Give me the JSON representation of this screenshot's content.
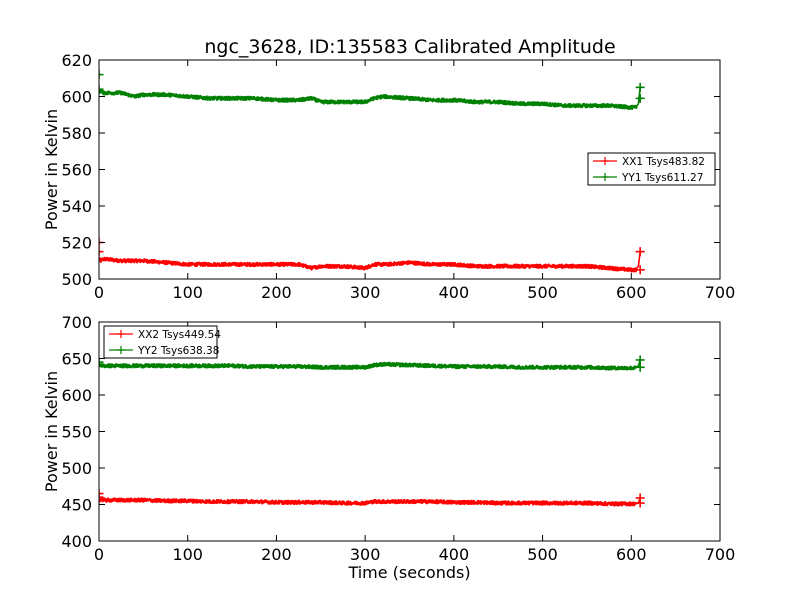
{
  "figure": {
    "title": "ngc_3628, ID:135583 Calibrated Amplitude"
  },
  "chart_data": [
    {
      "type": "line",
      "title": "ngc_3628, ID:135583 Calibrated Amplitude",
      "xlabel": "",
      "ylabel": "Power in Kelvin",
      "xlim": [
        0,
        700
      ],
      "ylim": [
        500,
        620
      ],
      "xticks": [
        0,
        100,
        200,
        300,
        400,
        500,
        600,
        700
      ],
      "yticks": [
        500,
        520,
        540,
        560,
        580,
        600,
        620
      ],
      "legend_position": "center-right",
      "series": [
        {
          "name": "XX1 Tsys483.82",
          "color": "#ff0000",
          "marker": "+",
          "x": [
            0,
            2,
            5,
            25,
            50,
            75,
            100,
            125,
            150,
            175,
            200,
            225,
            240,
            250,
            275,
            300,
            310,
            325,
            350,
            375,
            400,
            425,
            450,
            475,
            500,
            525,
            550,
            575,
            600,
            605,
            608,
            610
          ],
          "y": [
            511,
            510,
            511,
            510,
            510,
            509,
            508,
            508,
            508,
            508,
            508,
            508,
            506,
            507,
            507,
            506,
            508,
            508,
            509,
            508,
            508,
            507,
            507,
            507,
            507,
            507,
            507,
            506,
            505,
            505,
            507,
            515
          ],
          "outliers": [
            [
              0,
              520
            ],
            [
              0,
              515
            ],
            [
              610,
              505
            ]
          ]
        },
        {
          "name": "YY1 Tsys611.27",
          "color": "#008000",
          "marker": "+",
          "x": [
            0,
            2,
            5,
            25,
            40,
            50,
            75,
            100,
            125,
            150,
            175,
            200,
            225,
            240,
            250,
            275,
            300,
            310,
            320,
            350,
            375,
            400,
            425,
            450,
            475,
            500,
            525,
            550,
            575,
            600,
            605,
            608,
            610
          ],
          "y": [
            603,
            603,
            602,
            602,
            600,
            601,
            601,
            600,
            599,
            599,
            599,
            598,
            598,
            599,
            597,
            597,
            597,
            599,
            600,
            599,
            598,
            598,
            597,
            597,
            596,
            596,
            595,
            595,
            595,
            594,
            594,
            596,
            605
          ],
          "outliers": [
            [
              0,
              612
            ],
            [
              0,
              604
            ],
            [
              610,
              599
            ]
          ]
        }
      ]
    },
    {
      "type": "line",
      "title": "",
      "xlabel": "Time (seconds)",
      "ylabel": "Power in Kelvin",
      "xlim": [
        0,
        700
      ],
      "ylim": [
        400,
        700
      ],
      "xticks": [
        0,
        100,
        200,
        300,
        400,
        500,
        600,
        700
      ],
      "yticks": [
        400,
        450,
        500,
        550,
        600,
        650,
        700
      ],
      "legend_position": "upper-left",
      "series": [
        {
          "name": "XX2 Tsys449.54",
          "color": "#ff0000",
          "marker": "+",
          "x": [
            0,
            2,
            5,
            25,
            50,
            75,
            100,
            125,
            150,
            175,
            200,
            225,
            250,
            275,
            300,
            310,
            325,
            350,
            375,
            400,
            425,
            450,
            475,
            500,
            525,
            550,
            575,
            600,
            605,
            608,
            610
          ],
          "y": [
            456,
            457,
            456,
            456,
            456,
            455,
            455,
            454,
            454,
            454,
            453,
            453,
            453,
            452,
            452,
            454,
            454,
            454,
            454,
            453,
            453,
            452,
            452,
            452,
            452,
            452,
            451,
            451,
            451,
            452,
            459
          ],
          "outliers": [
            [
              0,
              465
            ],
            [
              0,
              460
            ],
            [
              610,
              452
            ]
          ]
        },
        {
          "name": "YY2 Tsys638.38",
          "color": "#008000",
          "marker": "+",
          "x": [
            0,
            2,
            5,
            25,
            50,
            75,
            100,
            125,
            150,
            175,
            200,
            225,
            250,
            275,
            300,
            310,
            320,
            350,
            375,
            400,
            425,
            450,
            475,
            500,
            525,
            550,
            575,
            600,
            605,
            608,
            610
          ],
          "y": [
            641,
            641,
            640,
            640,
            640,
            640,
            640,
            640,
            640,
            639,
            639,
            639,
            638,
            638,
            638,
            641,
            642,
            641,
            640,
            639,
            639,
            639,
            638,
            638,
            638,
            638,
            637,
            637,
            637,
            640,
            648
          ],
          "outliers": [
            [
              0,
              645
            ],
            [
              610,
              638
            ]
          ]
        }
      ]
    }
  ]
}
